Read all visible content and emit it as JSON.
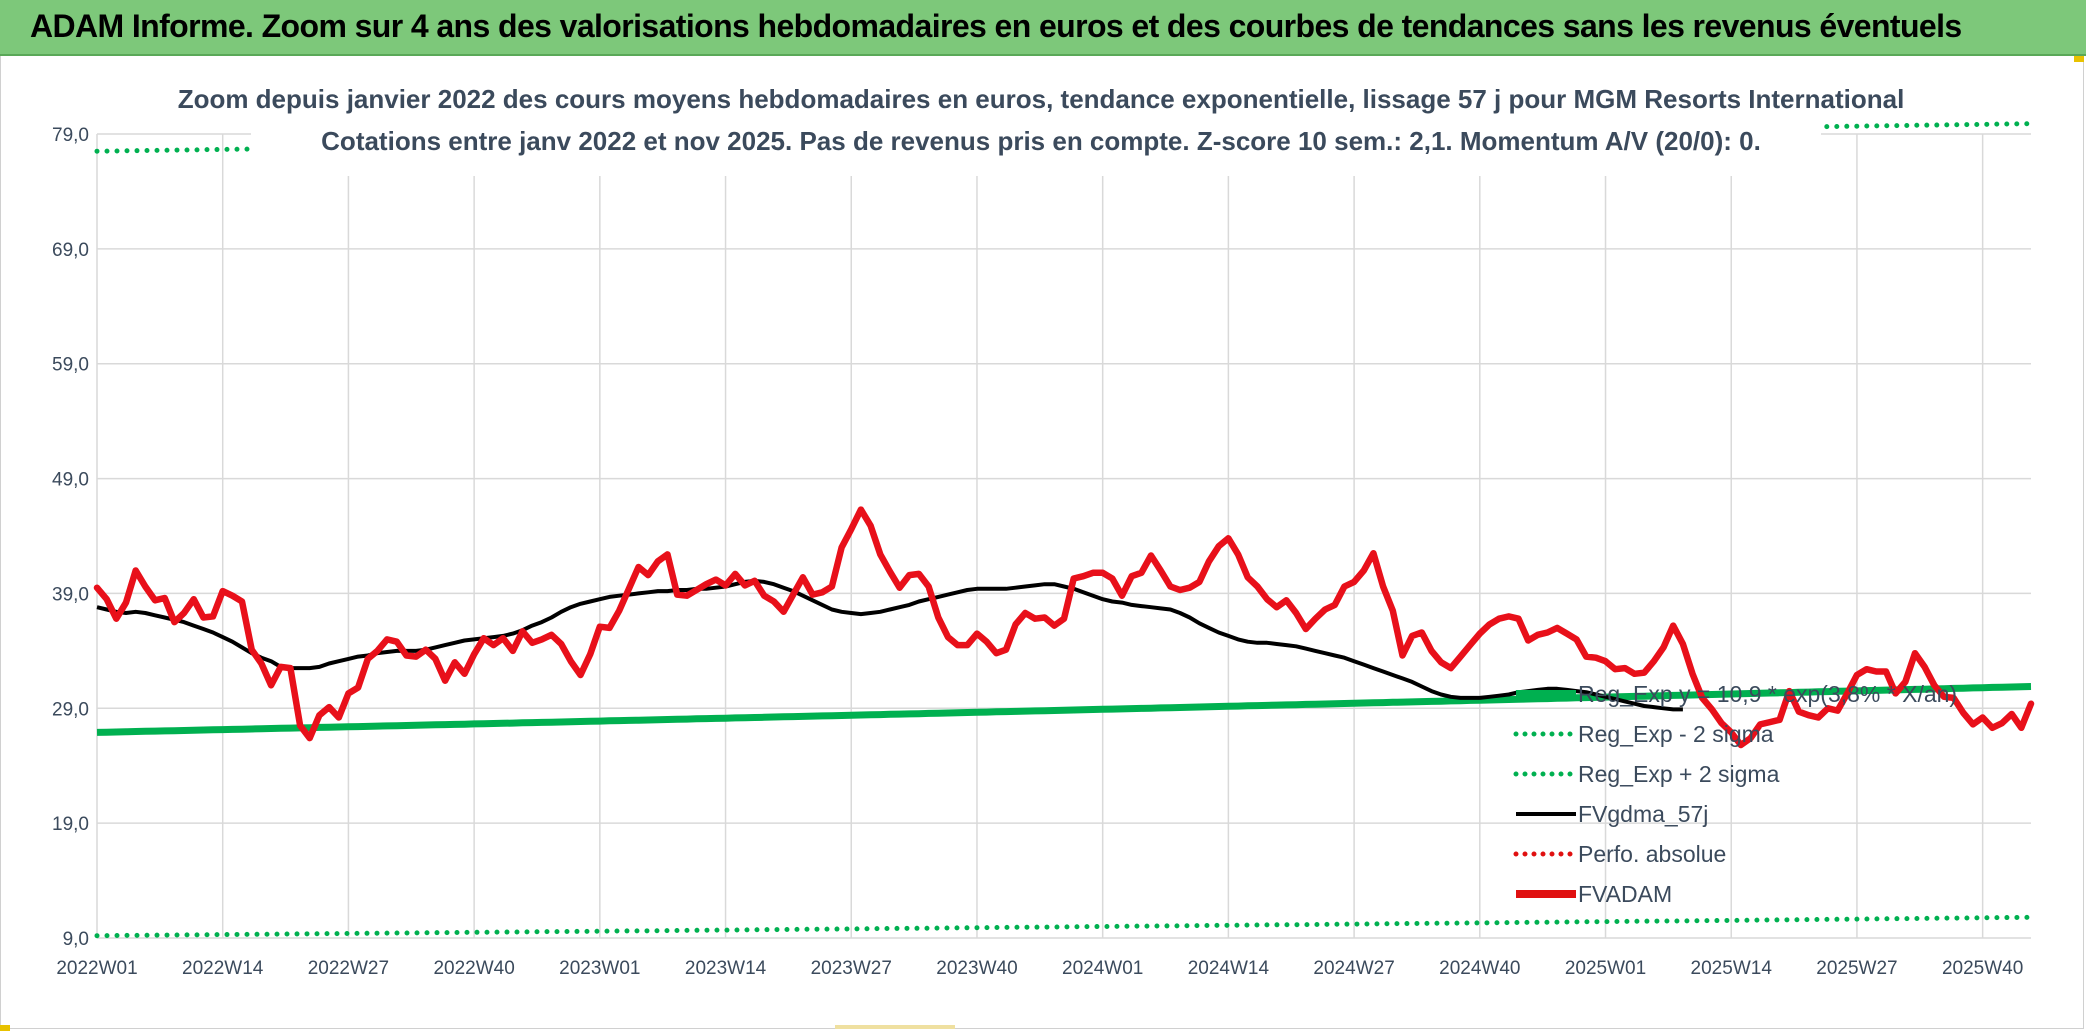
{
  "banner": {
    "title": "ADAM Informe. Zoom sur 4 ans des valorisations hebdomadaires en euros et des courbes de tendances sans les revenus éventuels",
    "color": "#7dc87a"
  },
  "chart_data": {
    "type": "line",
    "title": "Zoom depuis janvier 2022 des cours moyens hebdomadaires en euros, tendance exponentielle, lissage 57 j pour MGM Resorts International",
    "subtitle": "Cotations entre janv 2022 et nov 2025. Pas de revenus pris en compte. Z-score 10 sem.: 2,1. Momentum A/V (20/0): 0.",
    "ylim": [
      9,
      79
    ],
    "y_ticks": [
      "79,0",
      "69,0",
      "59,0",
      "49,0",
      "39,0",
      "29,0",
      "19,0",
      "9,0"
    ],
    "x_ticks": [
      "2022W01",
      "2022W14",
      "2022W27",
      "2022W40",
      "2023W01",
      "2023W14",
      "2023W27",
      "2023W40",
      "2024W01",
      "2024W14",
      "2024W27",
      "2024W40",
      "2025W01",
      "2025W14",
      "2025W27",
      "2025W40"
    ],
    "grid": true,
    "legend_position": "bottom-right",
    "legend": [
      {
        "label": "Reg_Exp y = 10,9 * exp(3,8% * X/an)",
        "color": "#00b050",
        "style": "thick"
      },
      {
        "label": "Reg_Exp - 2 sigma",
        "color": "#00b050",
        "style": "dotted"
      },
      {
        "label": "Reg_Exp + 2 sigma",
        "color": "#00b050",
        "style": "dotted"
      },
      {
        "label": "FVgdma_57j",
        "color": "#000000",
        "style": "solid"
      },
      {
        "label": "Perfo. absolue",
        "color": "#e01010",
        "style": "dotted"
      },
      {
        "label": "FVADAM",
        "color": "#e01010",
        "style": "thick"
      }
    ],
    "x_start_week": 1,
    "series": [
      {
        "name": "Reg_Exp y = 10,9 * exp(3,8% * X/an)",
        "start": 26.9,
        "end": 30.9
      },
      {
        "name": "Reg_Exp - 2 sigma",
        "start": 9.2,
        "end": 10.8
      },
      {
        "name": "Reg_Exp + 2 sigma",
        "start": 77.5,
        "end": 79.9
      },
      {
        "name": "FVgdma_57j",
        "values": [
          37.8,
          37.6,
          37.4,
          37.3,
          37.4,
          37.3,
          37.1,
          36.9,
          36.7,
          36.5,
          36.2,
          35.9,
          35.6,
          35.2,
          34.8,
          34.3,
          33.8,
          33.4,
          33.1,
          32.6,
          32.5,
          32.5,
          32.5,
          32.6,
          32.9,
          33.1,
          33.3,
          33.5,
          33.6,
          33.8,
          33.9,
          34.0,
          34.0,
          34.0,
          34.1,
          34.3,
          34.5,
          34.7,
          34.9,
          35.0,
          35.1,
          35.2,
          35.3,
          35.5,
          35.8,
          36.2,
          36.5,
          36.9,
          37.4,
          37.8,
          38.1,
          38.3,
          38.5,
          38.7,
          38.8,
          38.9,
          39.0,
          39.1,
          39.2,
          39.2,
          39.3,
          39.3,
          39.4,
          39.4,
          39.5,
          39.6,
          39.8,
          40.0,
          40.1,
          40.0,
          39.8,
          39.5,
          39.2,
          38.8,
          38.4,
          38.0,
          37.6,
          37.4,
          37.3,
          37.2,
          37.3,
          37.4,
          37.6,
          37.8,
          38.0,
          38.3,
          38.5,
          38.7,
          38.9,
          39.1,
          39.3,
          39.4,
          39.4,
          39.4,
          39.4,
          39.5,
          39.6,
          39.7,
          39.8,
          39.8,
          39.6,
          39.4,
          39.1,
          38.8,
          38.5,
          38.3,
          38.2,
          38.0,
          37.9,
          37.8,
          37.7,
          37.6,
          37.3,
          36.9,
          36.4,
          36.0,
          35.6,
          35.3,
          35.0,
          34.8,
          34.7,
          34.7,
          34.6,
          34.5,
          34.4,
          34.2,
          34.0,
          33.8,
          33.6,
          33.4,
          33.1,
          32.8,
          32.5,
          32.2,
          31.9,
          31.6,
          31.3,
          30.9,
          30.5,
          30.2,
          30.0,
          29.9,
          29.9,
          29.9,
          30.0,
          30.1,
          30.2,
          30.4,
          30.5,
          30.6,
          30.7,
          30.7,
          30.6,
          30.5,
          30.4,
          30.2,
          30.0,
          29.8,
          29.6,
          29.4,
          29.2,
          29.1,
          29.0,
          28.9,
          28.9
        ]
      },
      {
        "name": "FVADAM",
        "values": [
          39.5,
          38.5,
          36.8,
          38.2,
          41.0,
          39.6,
          38.4,
          38.6,
          36.5,
          37.3,
          38.5,
          36.9,
          37.0,
          39.2,
          38.8,
          38.3,
          34.1,
          32.9,
          31.0,
          32.6,
          32.5,
          27.5,
          26.4,
          28.4,
          29.1,
          28.2,
          30.3,
          30.8,
          33.3,
          34.0,
          35.0,
          34.8,
          33.6,
          33.5,
          34.1,
          33.3,
          31.4,
          33.0,
          32.0,
          33.7,
          35.1,
          34.5,
          35.1,
          34.0,
          35.7,
          34.7,
          35.0,
          35.4,
          34.6,
          33.1,
          31.9,
          33.7,
          36.1,
          36.0,
          37.5,
          39.4,
          41.3,
          40.6,
          41.8,
          42.4,
          38.9,
          38.8,
          39.3,
          39.8,
          40.2,
          39.7,
          40.7,
          39.7,
          40.1,
          38.8,
          38.3,
          37.4,
          38.9,
          40.4,
          38.9,
          39.1,
          39.6,
          43.0,
          44.6,
          46.3,
          44.9,
          42.4,
          40.9,
          39.5,
          40.6,
          40.7,
          39.6,
          36.9,
          35.2,
          34.5,
          34.5,
          35.5,
          34.8,
          33.8,
          34.1,
          36.3,
          37.3,
          36.8,
          36.9,
          36.2,
          36.8,
          40.3,
          40.5,
          40.8,
          40.8,
          40.3,
          38.8,
          40.5,
          40.8,
          42.3,
          41.0,
          39.6,
          39.3,
          39.5,
          40.0,
          41.8,
          43.1,
          43.8,
          42.4,
          40.4,
          39.6,
          38.5,
          37.8,
          38.4,
          37.3,
          35.9,
          36.8,
          37.6,
          38.0,
          39.6,
          40.0,
          41.0,
          42.5,
          39.6,
          37.5,
          33.6,
          35.3,
          35.6,
          34.0,
          33.0,
          32.5,
          33.5,
          34.5,
          35.5,
          36.3,
          36.8,
          37.0,
          36.8,
          34.9,
          35.4,
          35.6,
          36.0,
          35.5,
          35.0,
          33.5,
          33.4,
          33.1,
          32.4,
          32.5,
          32.0,
          32.1,
          33.1,
          34.3,
          36.2,
          34.6,
          32.0,
          29.9,
          28.9,
          27.7,
          26.9,
          25.8,
          26.4,
          27.6,
          27.8,
          28.0,
          30.5,
          28.7,
          28.4,
          28.2,
          29.0,
          28.8,
          30.3,
          31.9,
          32.4,
          32.2,
          32.2,
          30.3,
          31.3,
          33.8,
          32.6,
          31.0,
          30.0,
          29.9,
          28.6,
          27.6,
          28.2,
          27.3,
          27.7,
          28.5,
          27.3,
          29.4
        ]
      }
    ]
  }
}
